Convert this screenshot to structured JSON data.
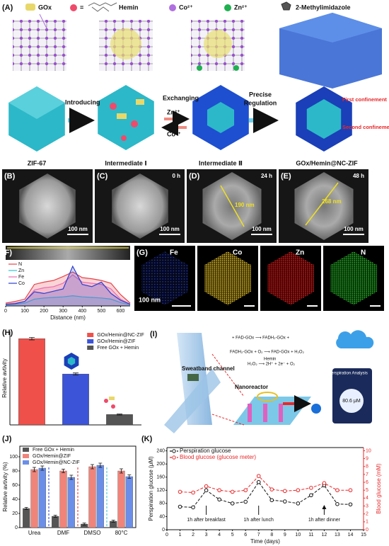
{
  "figure": {
    "A": {
      "label": "(A)",
      "legend": {
        "gox": "GOx",
        "equals": "=",
        "hemin": "Hemin",
        "co": "Co²⁺",
        "zn": "Zn²⁺",
        "mim": "2-Methylimidazole"
      },
      "steps": [
        "ZIF-67",
        "Intermediate Ⅰ",
        "Intermediate Ⅱ",
        "GOx/Hemin@NC-ZIF"
      ],
      "arrows": {
        "introducing": "Introducing",
        "exchanging": "Exchanging",
        "zn": "Zn²⁺",
        "co": "Co²⁺",
        "precise": "Precise",
        "regulation": "Regulation"
      },
      "confinement": [
        "First confinement",
        "Second confinement"
      ]
    },
    "tem": [
      {
        "label": "(B)",
        "scale": "100 nm"
      },
      {
        "label": "(C)",
        "time": "0 h",
        "scale": "100 nm"
      },
      {
        "label": "(D)",
        "time": "24 h",
        "size": "190 nm",
        "scale": "100 nm"
      },
      {
        "label": "(E)",
        "time": "48 h",
        "size": "268 nm",
        "scale": "100 nm"
      }
    ],
    "F": {
      "label": "(F)"
    },
    "G": {
      "label": "(G)",
      "maps": [
        "Fe",
        "Co",
        "Zn",
        "N"
      ],
      "scale": "100 nm"
    },
    "H": {
      "label": "(H)"
    },
    "I": {
      "label": "(I)",
      "reactions": [
        "+ FAD-GOx ⟶ FADH₂-GOx +",
        "FADH₂-GOx + O₂ ⟶ FAD-GOx + H₂O₂",
        "Hemin",
        "H₂O₂ ⟶ 2H⁺ + 2e⁻ + O₂"
      ],
      "sweatband": "Sweatband channel",
      "nanoreactor": "Nanoreactor",
      "app": "Perspiration Analysis",
      "reading": "80.6 μM"
    },
    "J": {
      "label": "(J)"
    },
    "K": {
      "label": "(K)"
    }
  },
  "chart_data": [
    {
      "type": "area",
      "x_label": "Distance (nm)",
      "legend": "upper left",
      "x": [
        0,
        50,
        100,
        150,
        200,
        250,
        300,
        350,
        400,
        450,
        500,
        550,
        600,
        650
      ],
      "xlim": [
        0,
        650
      ],
      "xticks": [
        0,
        100,
        200,
        300,
        400,
        500,
        600
      ],
      "ylim": [
        0,
        80
      ],
      "series": [
        {
          "name": "N",
          "color": "#e8424a",
          "values": [
            5,
            8,
            12,
            38,
            42,
            45,
            52,
            60,
            50,
            48,
            45,
            40,
            20,
            5
          ]
        },
        {
          "name": "Zn",
          "color": "#2ec4d6",
          "values": [
            2,
            3,
            5,
            12,
            14,
            15,
            16,
            18,
            16,
            15,
            14,
            12,
            6,
            2
          ]
        },
        {
          "name": "Fe",
          "color": "#e86fb0",
          "values": [
            3,
            5,
            8,
            28,
            32,
            34,
            40,
            55,
            42,
            40,
            38,
            30,
            12,
            3
          ]
        },
        {
          "name": "Co",
          "color": "#2a3fd0",
          "values": [
            3,
            4,
            8,
            25,
            22,
            26,
            30,
            70,
            38,
            34,
            42,
            22,
            10,
            3
          ]
        }
      ]
    },
    {
      "type": "bar",
      "y_label": "Relative avtivity",
      "legend": "upper right",
      "ylim": [
        0,
        9
      ],
      "series": [
        {
          "name": "GOx/Hemin@NC-ZIF",
          "color": "#f0504a",
          "values": [
            8.3
          ],
          "errors": [
            0.12
          ]
        },
        {
          "name": "GOx/Hemin@ZIF",
          "color": "#3c54d8",
          "values": [
            4.9
          ],
          "errors": [
            0.1
          ]
        },
        {
          "name": "Free GOx + Hemin",
          "color": "#555555",
          "values": [
            1.0
          ],
          "errors": [
            0.05
          ]
        }
      ]
    },
    {
      "type": "grouped_bar",
      "y_label": "Relative avtivity (%)",
      "legend": "upper left",
      "categories": [
        "Urea",
        "DMF",
        "DMSO",
        "80°C"
      ],
      "ylim": [
        0,
        115
      ],
      "yticks": [
        0,
        20,
        40,
        60,
        80,
        100
      ],
      "series": [
        {
          "name": "Free GOx + Hemin",
          "color": "#555555",
          "values": [
            27,
            16,
            5,
            9
          ],
          "errors": [
            1.5,
            1.5,
            1.5,
            1.5
          ]
        },
        {
          "name": "GOx/Hemin@ZIF",
          "color": "#f0847a",
          "values": [
            82,
            80,
            86,
            80
          ],
          "errors": [
            3,
            2.5,
            3,
            3
          ]
        },
        {
          "name": "GOx/Hemin@NC-ZIF",
          "color": "#6b8fe8",
          "values": [
            84,
            71,
            88,
            72
          ],
          "errors": [
            3,
            3,
            3,
            2.5
          ]
        }
      ]
    },
    {
      "type": "line",
      "x_label": "Time (days)",
      "y_label": "Perspiration glucose (μM)",
      "y2_label": "Blood glucose (mM)",
      "legend": "upper left",
      "x": [
        1,
        2,
        3,
        4,
        5,
        6,
        7,
        8,
        9,
        10,
        11,
        12,
        13,
        14
      ],
      "xlim": [
        0,
        15
      ],
      "xticks": [
        0,
        1,
        2,
        3,
        4,
        5,
        6,
        7,
        8,
        9,
        10,
        11,
        12,
        13,
        14,
        15
      ],
      "ylim": [
        0,
        250
      ],
      "yticks": [
        0,
        40,
        80,
        120,
        160,
        200,
        240
      ],
      "y2lim": [
        0,
        10.4
      ],
      "y2ticks": [
        0,
        1,
        2,
        3,
        4,
        5,
        6,
        7,
        8,
        9,
        10
      ],
      "annotations": [
        "1h after breakfast",
        "1h after lunch",
        "1h after dinner"
      ],
      "series": [
        {
          "name": "Perspiration glucose",
          "color": "#111111",
          "values": [
            70,
            68,
            120,
            92,
            80,
            85,
            145,
            90,
            86,
            80,
            105,
            135,
            78,
            77
          ]
        },
        {
          "name": "Blood glucose (glucose meter)",
          "color": "#e8282a",
          "axis": "y2",
          "values": [
            4.8,
            4.7,
            5.5,
            5.0,
            4.8,
            5.0,
            6.8,
            5.1,
            4.9,
            5.0,
            5.3,
            5.9,
            5.0,
            5.0
          ]
        }
      ]
    }
  ]
}
